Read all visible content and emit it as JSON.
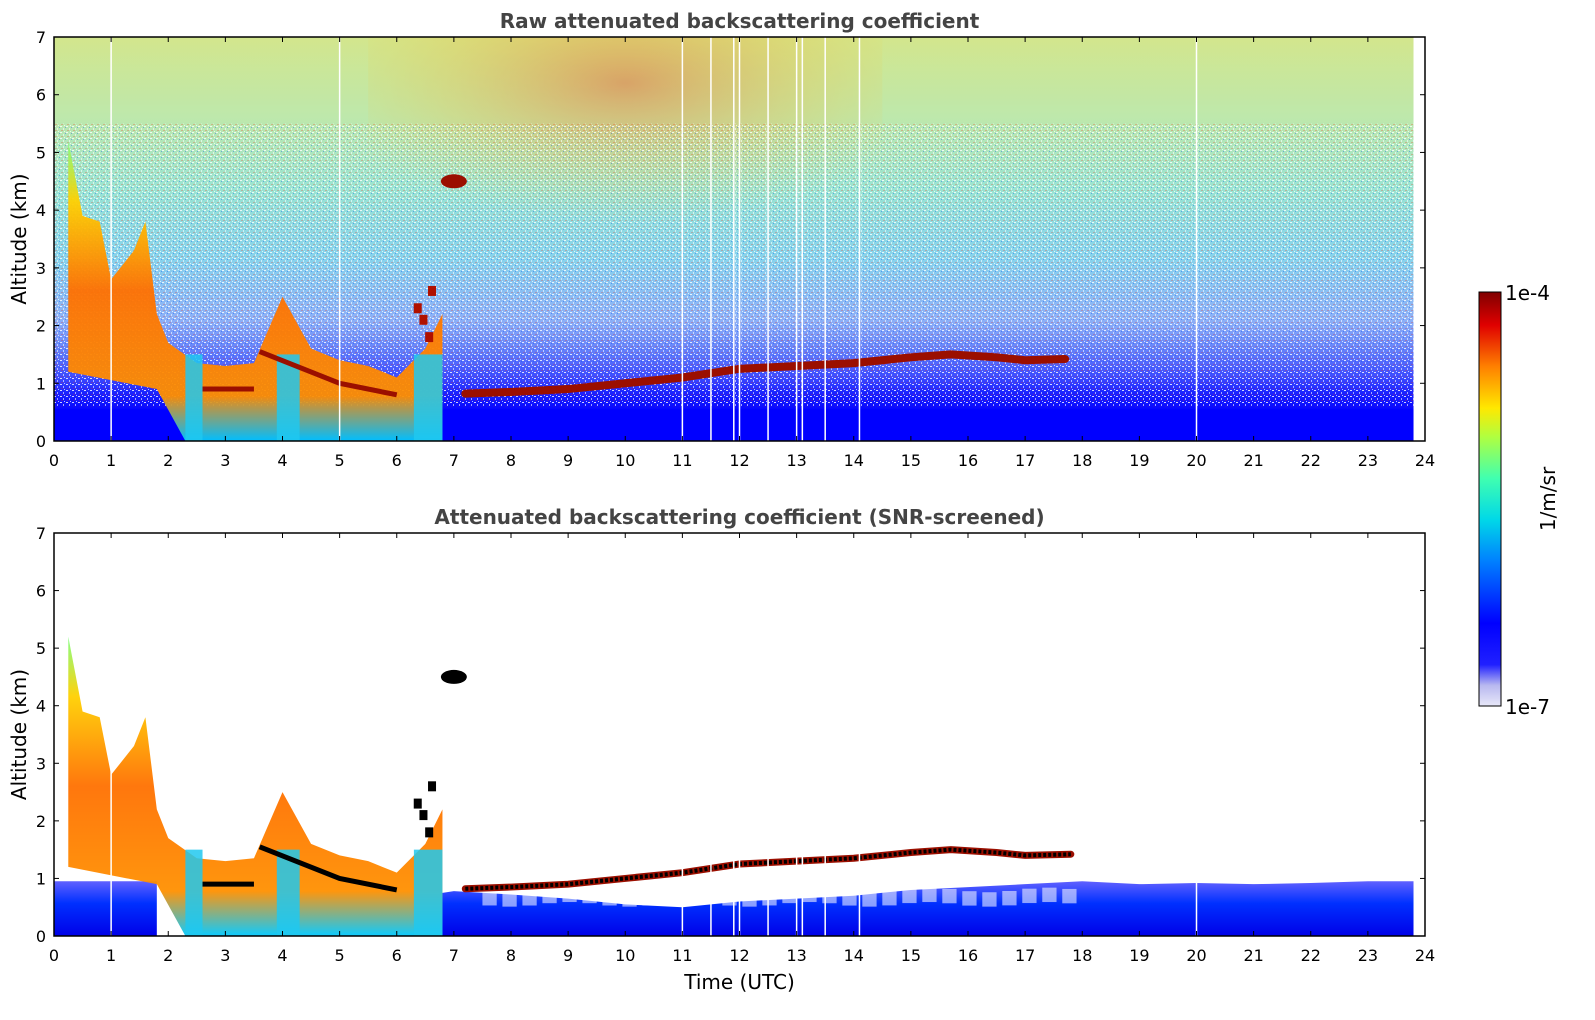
{
  "colors": {
    "jet_ramp": [
      "#e8e8f8",
      "#0000ff",
      "#0080ff",
      "#00e0e0",
      "#80ff80",
      "#ffe000",
      "#ff7000",
      "#e00000",
      "#800000"
    ],
    "strong_layer": "#9b0f00",
    "black_core": "#000000"
  },
  "chart_data": [
    {
      "type": "heatmap",
      "title": "Raw attenuated backscattering coefficient",
      "xlabel": "",
      "ylabel": "Altitude (km)",
      "xlim": [
        0,
        24
      ],
      "ylim": [
        0,
        7
      ],
      "xticks": [
        "0",
        "1",
        "2",
        "3",
        "4",
        "5",
        "6",
        "7",
        "8",
        "9",
        "10",
        "11",
        "12",
        "13",
        "14",
        "15",
        "16",
        "17",
        "18",
        "19",
        "20",
        "21",
        "22",
        "23",
        "24"
      ],
      "yticks": [
        "0",
        "1",
        "2",
        "3",
        "4",
        "5",
        "6",
        "7"
      ],
      "data_end_hour": 23.8,
      "gap_times": [
        1.0,
        5.0,
        11.0,
        11.5,
        11.9,
        12.0,
        12.5,
        13.0,
        13.1,
        13.5,
        14.1,
        20.0
      ],
      "cloud_layer": {
        "x": [
          7.2,
          8,
          9,
          10,
          11,
          12,
          13,
          14,
          15,
          15.7,
          16.5,
          17,
          17.7
        ],
        "y": [
          0.82,
          0.85,
          0.9,
          1.0,
          1.1,
          1.25,
          1.3,
          1.35,
          1.45,
          1.5,
          1.45,
          1.4,
          1.42
        ]
      },
      "aerosol_top": {
        "x": [
          0.25,
          0.5,
          0.8,
          1.0,
          1.4,
          1.6,
          1.8,
          2.0,
          2.5,
          3.0,
          3.5,
          4.0,
          4.5,
          5.0,
          5.5,
          6.0,
          6.5,
          6.8
        ],
        "y": [
          5.2,
          3.9,
          3.8,
          2.8,
          3.3,
          3.8,
          2.2,
          1.7,
          1.35,
          1.3,
          1.35,
          2.5,
          1.6,
          1.4,
          1.3,
          1.1,
          1.6,
          2.2
        ]
      }
    },
    {
      "type": "heatmap",
      "title": "Attenuated backscattering coefficient (SNR-screened)",
      "xlabel": "Time (UTC)",
      "ylabel": "Altitude (km)",
      "xlim": [
        0,
        24
      ],
      "ylim": [
        0,
        7
      ],
      "xticks": [
        "0",
        "1",
        "2",
        "3",
        "4",
        "5",
        "6",
        "7",
        "8",
        "9",
        "10",
        "11",
        "12",
        "13",
        "14",
        "15",
        "16",
        "17",
        "18",
        "19",
        "20",
        "21",
        "22",
        "23",
        "24"
      ],
      "yticks": [
        "0",
        "1",
        "2",
        "3",
        "4",
        "5",
        "6",
        "7"
      ],
      "data_end_hour": 23.8,
      "gap_times": [
        1.0,
        11.0,
        11.5,
        11.9,
        12.0,
        12.5,
        13.0,
        13.1,
        13.5,
        14.1,
        20.0
      ],
      "cloud_layer": {
        "x": [
          7.2,
          8,
          9,
          10,
          11,
          12,
          13,
          14,
          15,
          15.7,
          16.5,
          17,
          17.8
        ],
        "y": [
          0.82,
          0.85,
          0.9,
          1.0,
          1.1,
          1.25,
          1.3,
          1.35,
          1.45,
          1.5,
          1.45,
          1.4,
          1.42
        ]
      }
    }
  ],
  "colorbar": {
    "label": "1/m/sr",
    "max_label": "1e-4",
    "min_label": "1e-7",
    "scale": "log"
  }
}
